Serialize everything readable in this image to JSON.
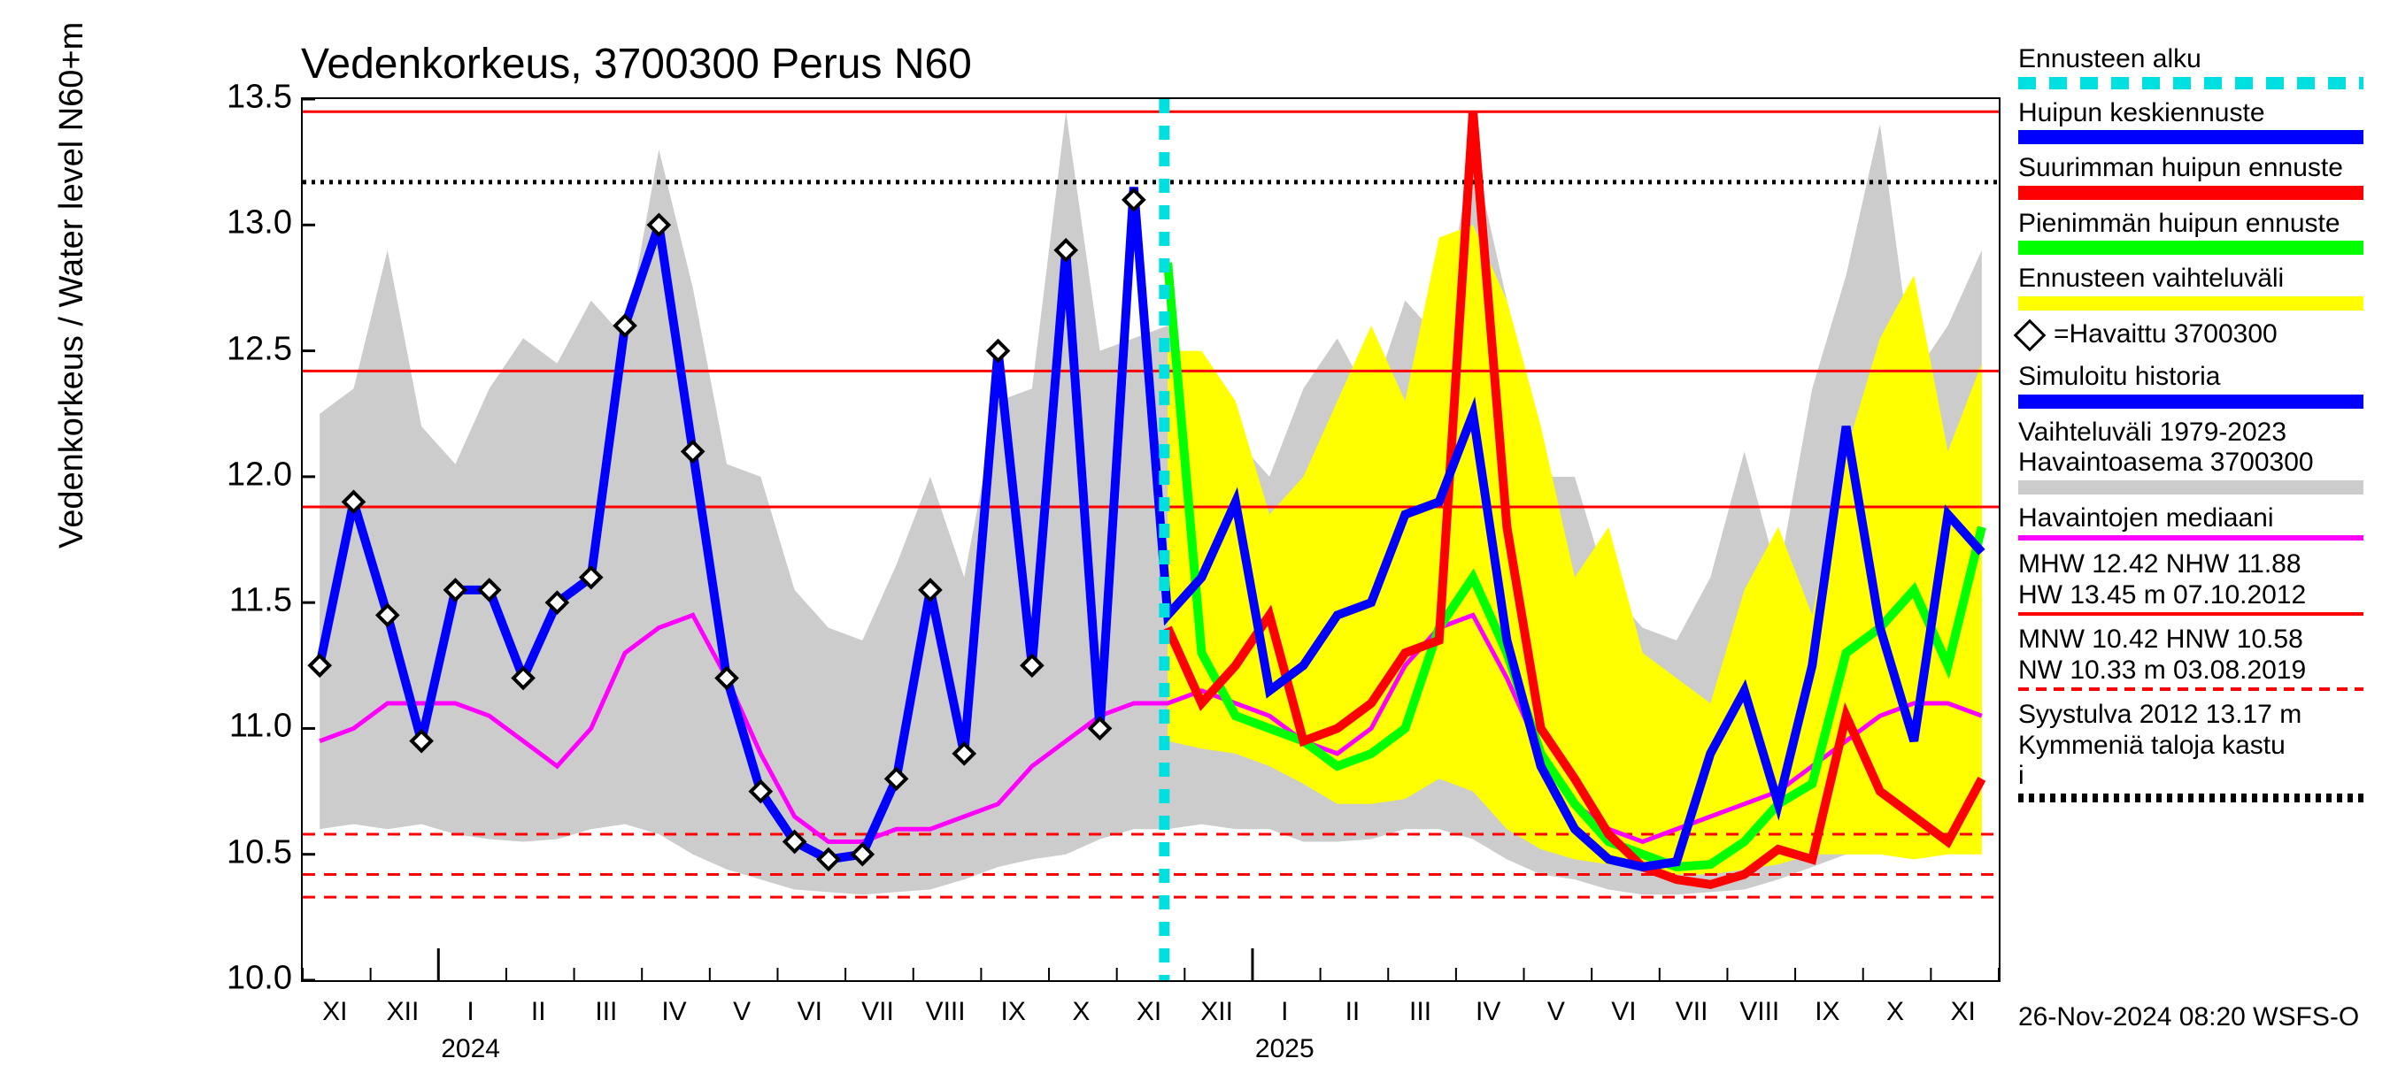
{
  "chart": {
    "type": "line",
    "title": "Vedenkorkeus, 3700300 Perus N60",
    "ylabel": "Vedenkorkeus / Water level   N60+m",
    "ylim": [
      10.0,
      13.5
    ],
    "yticks": [
      10.0,
      10.5,
      11.0,
      11.5,
      12.0,
      12.5,
      13.0,
      13.5
    ],
    "xticks_months": [
      "XI",
      "XII",
      "I",
      "II",
      "III",
      "IV",
      "V",
      "VI",
      "VII",
      "VIII",
      "IX",
      "X",
      "XI",
      "XII",
      "I",
      "II",
      "III",
      "IV",
      "V",
      "VI",
      "VII",
      "VIII",
      "IX",
      "X",
      "XI"
    ],
    "xyears": [
      {
        "label": "2024",
        "month_index": 2.5
      },
      {
        "label": "2025",
        "month_index": 14.5
      }
    ],
    "forecast_start_month_index": 12.7,
    "ref_lines": {
      "hw_solid_red": 13.45,
      "mhw_solid_red": 12.42,
      "nhw_solid_red": 11.88,
      "mnw_dashed_red": 10.42,
      "hnw_dashed_red": 10.58,
      "nw_dashed_red": 10.33,
      "syystulva_dotted_black": 13.17
    },
    "colors": {
      "background": "#ffffff",
      "axis": "#000000",
      "grid_gray": "#cccccc",
      "range_gray": "#cccccc",
      "range_yellow": "#ffff00",
      "blue": "#0000ff",
      "red": "#ff0000",
      "green": "#00ff00",
      "magenta": "#ff00ff",
      "cyan": "#00e0e0",
      "black": "#000000"
    },
    "line_width_thick": 8,
    "line_width_thin": 4,
    "marker": "diamond",
    "median_magenta": [
      10.95,
      11.0,
      11.1,
      11.1,
      11.1,
      11.05,
      10.95,
      10.85,
      11.0,
      11.3,
      11.4,
      11.45,
      11.2,
      10.9,
      10.65,
      10.55,
      10.55,
      10.6,
      10.6,
      10.65,
      10.7,
      10.85,
      10.95,
      11.05,
      11.1,
      11.1,
      11.15,
      11.1,
      11.05,
      10.95,
      10.9,
      11.0,
      11.25,
      11.4,
      11.45,
      11.2,
      10.9,
      10.7,
      10.6,
      10.55,
      10.6,
      10.65,
      10.7,
      10.75,
      10.85,
      10.95,
      11.05,
      11.1,
      11.1,
      11.05
    ],
    "gray_high": [
      12.25,
      12.35,
      12.9,
      12.2,
      12.05,
      12.35,
      12.55,
      12.45,
      12.7,
      12.55,
      13.3,
      12.75,
      12.05,
      12.0,
      11.55,
      11.4,
      11.35,
      11.65,
      12.0,
      11.6,
      12.3,
      12.35,
      13.45,
      12.5,
      12.55,
      12.6,
      12.25,
      12.15,
      12.0,
      12.35,
      12.55,
      12.3,
      12.7,
      12.55,
      13.3,
      12.7,
      12.0,
      12.0,
      11.55,
      11.4,
      11.35,
      11.6,
      12.1,
      11.6,
      12.35,
      12.8,
      13.4,
      12.4,
      12.6,
      12.9
    ],
    "gray_low": [
      10.6,
      10.62,
      10.6,
      10.62,
      10.58,
      10.56,
      10.55,
      10.56,
      10.6,
      10.62,
      10.58,
      10.5,
      10.44,
      10.4,
      10.36,
      10.35,
      10.34,
      10.35,
      10.36,
      10.4,
      10.45,
      10.48,
      10.5,
      10.56,
      10.6,
      10.6,
      10.62,
      10.6,
      10.6,
      10.55,
      10.55,
      10.56,
      10.6,
      10.6,
      10.56,
      10.48,
      10.42,
      10.4,
      10.36,
      10.34,
      10.34,
      10.35,
      10.36,
      10.4,
      10.45,
      10.5,
      10.5,
      10.56,
      10.6,
      10.6
    ],
    "yellow_high_from_idx": 25,
    "yellow_high": [
      12.5,
      12.5,
      12.3,
      11.85,
      12.0,
      12.3,
      12.6,
      12.3,
      12.95,
      13.0,
      12.7,
      12.2,
      11.6,
      11.8,
      11.3,
      11.2,
      11.1,
      11.55,
      11.8,
      11.45,
      12.1,
      12.55,
      12.8,
      12.1,
      12.45
    ],
    "yellow_low": [
      10.95,
      10.92,
      10.9,
      10.85,
      10.78,
      10.7,
      10.7,
      10.72,
      10.8,
      10.75,
      10.6,
      10.52,
      10.48,
      10.46,
      10.44,
      10.42,
      10.42,
      10.44,
      10.46,
      10.5,
      10.5,
      10.5,
      10.48,
      10.5,
      10.5
    ],
    "blue_series": [
      11.25,
      11.9,
      11.45,
      10.95,
      11.55,
      11.55,
      11.2,
      11.5,
      11.6,
      12.6,
      13.0,
      12.1,
      11.2,
      10.75,
      10.55,
      10.48,
      10.5,
      10.8,
      11.55,
      10.9,
      12.5,
      11.25,
      12.9,
      11.0,
      13.15,
      11.45,
      11.6,
      11.9,
      11.15,
      11.25,
      11.45,
      11.5,
      11.85,
      11.9,
      12.25,
      11.35,
      10.85,
      10.6,
      10.48,
      10.45,
      10.47,
      10.9,
      11.15,
      10.7,
      11.25,
      12.2,
      11.4,
      10.95,
      11.85,
      11.7
    ],
    "red_series_from_idx": 25,
    "red_series": [
      11.4,
      11.1,
      11.25,
      11.45,
      10.95,
      11.0,
      11.1,
      11.3,
      11.35,
      13.45,
      11.8,
      11.0,
      10.8,
      10.58,
      10.45,
      10.4,
      10.38,
      10.42,
      10.52,
      10.48,
      11.05,
      10.75,
      10.65,
      10.55,
      10.8
    ],
    "green_series_from_idx": 25,
    "green_series": [
      12.85,
      11.3,
      11.05,
      11.0,
      10.95,
      10.85,
      10.9,
      11.0,
      11.4,
      11.6,
      11.3,
      10.9,
      10.7,
      10.55,
      10.5,
      10.45,
      10.46,
      10.55,
      10.7,
      10.78,
      11.3,
      11.4,
      11.55,
      11.25,
      11.8
    ],
    "observed_to_idx": 25,
    "observed": [
      11.25,
      11.9,
      11.45,
      10.95,
      11.55,
      11.55,
      11.2,
      11.5,
      11.6,
      12.6,
      13.0,
      12.1,
      11.2,
      10.75,
      10.55,
      10.48,
      10.5,
      10.8,
      11.55,
      10.9,
      12.5,
      11.25,
      12.9,
      11.0,
      13.1
    ]
  },
  "legend": {
    "l1": "Ennusteen alku",
    "l2": "Huipun keskiennuste",
    "l3": "Suurimman huipun ennuste",
    "l4": "Pienimmän huipun ennuste",
    "l5": "Ennusteen vaihteluväli",
    "l6": "=Havaittu 3700300",
    "l7": "Simuloitu historia",
    "l8a": "Vaihteluväli 1979-2023",
    "l8b": " Havaintoasema 3700300",
    "l9": "Havaintojen mediaani",
    "lstat1": "MHW  12.42 NHW  11.88",
    "lstat2": "HW  13.45 m 07.10.2012",
    "lstat3": "MNW  10.42 HNW  10.58",
    "lstat4": "NW  10.33 m 03.08.2019",
    "lnote1": "Syystulva 2012 13.17 m",
    "lnote2": "Kymmeniä taloja kastu",
    "lnote3": "i"
  },
  "footer": "26-Nov-2024 08:20 WSFS-O"
}
